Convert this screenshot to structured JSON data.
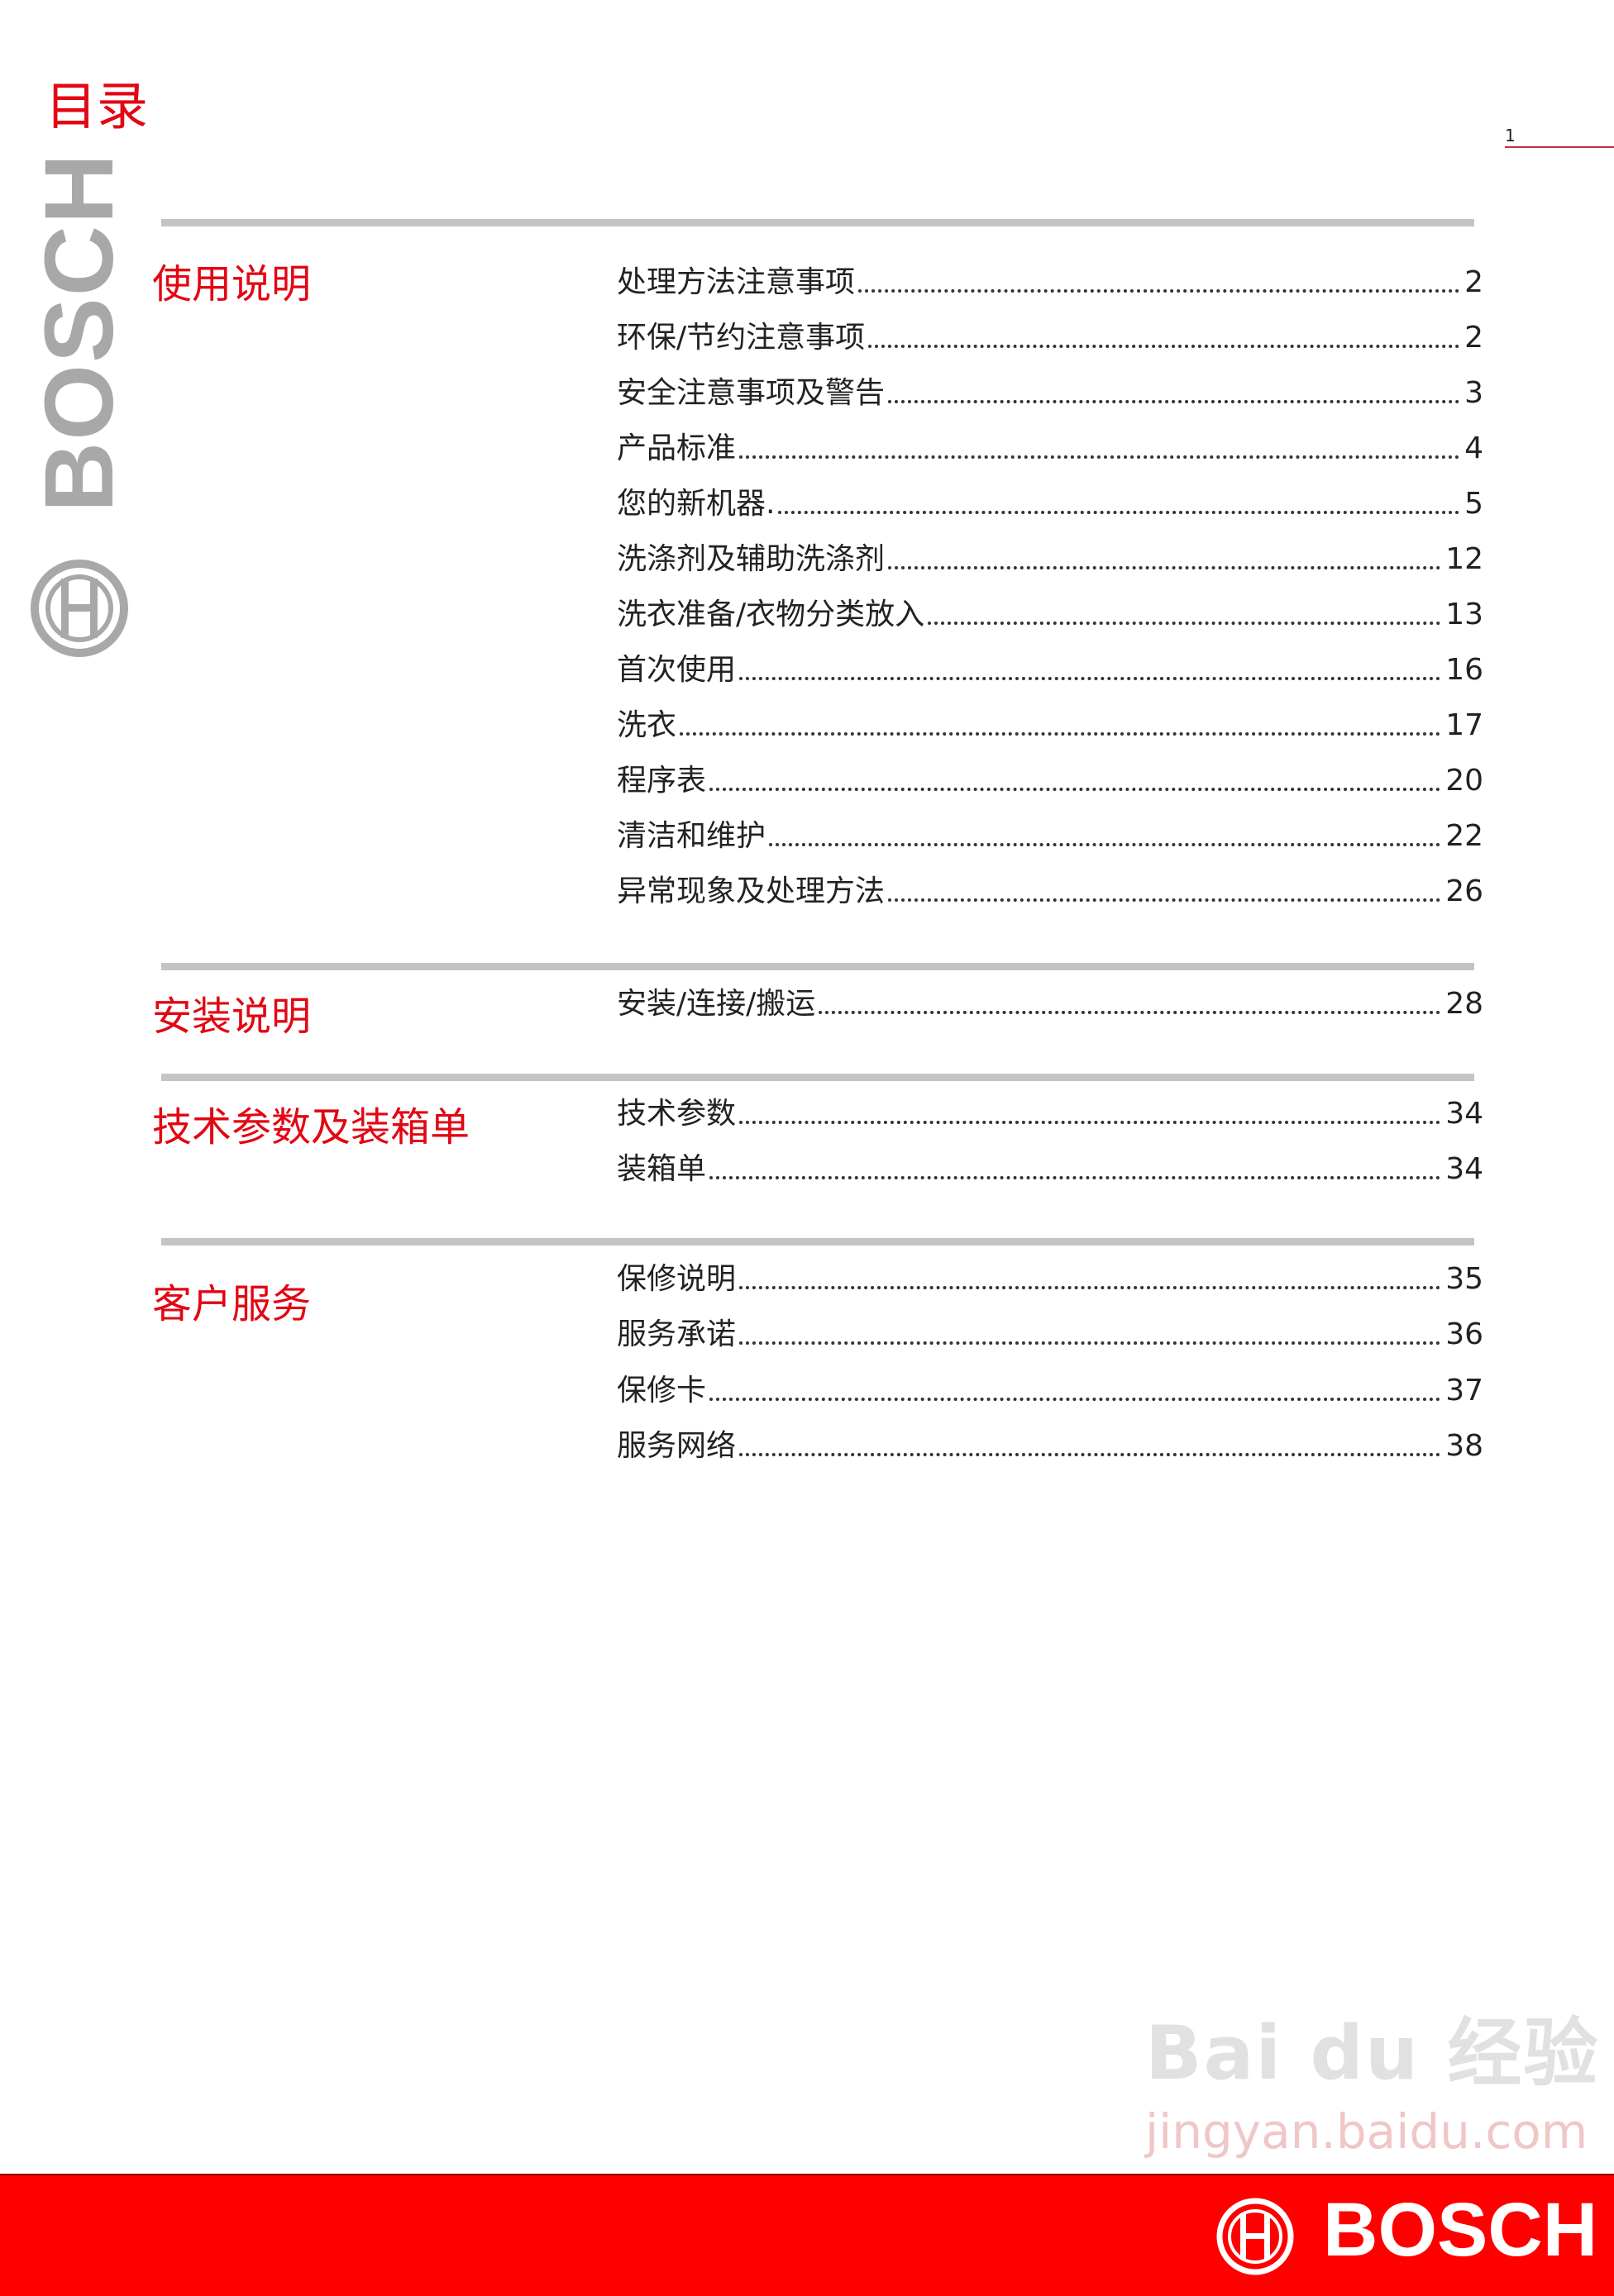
{
  "page": {
    "title": "目录",
    "page_number": "1",
    "accent_color": "#e30613"
  },
  "branding": {
    "side_logo_text": "BOSCH",
    "footer_logo_text": "BOSCH",
    "footer_color": "#ff0000",
    "side_logo_color": "#a8a8a8"
  },
  "watermark": {
    "text": "Bai du 经验",
    "url": "jingyan.baidu.com"
  },
  "sections": [
    {
      "heading": "使用说明",
      "entries": [
        {
          "label": "处理方法注意事项",
          "page": "2"
        },
        {
          "label": "环保/节约注意事项",
          "page": "2"
        },
        {
          "label": "安全注意事项及警告",
          "page": "3"
        },
        {
          "label": "产品标准",
          "page": "4"
        },
        {
          "label": "您的新机器.",
          "page": "5"
        },
        {
          "label": "洗涤剂及辅助洗涤剂",
          "page": "12"
        },
        {
          "label": "洗衣准备/衣物分类放入",
          "page": "13"
        },
        {
          "label": "首次使用",
          "page": "16"
        },
        {
          "label": "洗衣",
          "page": "17"
        },
        {
          "label": "程序表",
          "page": "20"
        },
        {
          "label": "清洁和维护",
          "page": "22"
        },
        {
          "label": "异常现象及处理方法",
          "page": "26"
        }
      ]
    },
    {
      "heading": "安装说明",
      "entries": [
        {
          "label": "安装/连接/搬运",
          "page": "28"
        }
      ]
    },
    {
      "heading": "技术参数及装箱单",
      "entries": [
        {
          "label": "技术参数",
          "page": "34"
        },
        {
          "label": "装箱单",
          "page": "34"
        }
      ]
    },
    {
      "heading": "客户服务",
      "entries": [
        {
          "label": "保修说明",
          "page": "35"
        },
        {
          "label": "服务承诺",
          "page": "36"
        },
        {
          "label": "保修卡",
          "page": "37"
        },
        {
          "label": "服务网络",
          "page": "38"
        }
      ]
    }
  ]
}
